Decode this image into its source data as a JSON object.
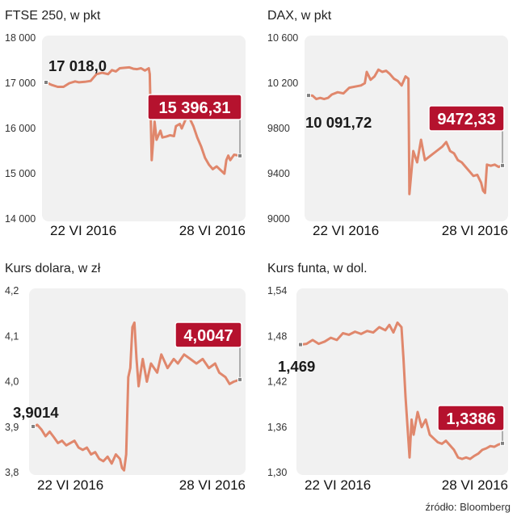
{
  "colors": {
    "line": "#e0876c",
    "panel": "#f1f1f1",
    "callout": "#b5122e",
    "marker": "#808080"
  },
  "source": "źródło: Bloomberg",
  "chart_data": [
    {
      "type": "line",
      "title": "FTSE 250, w pkt",
      "y_ticks": [
        "18 000",
        "17 000",
        "16 000",
        "15 000",
        "14 000"
      ],
      "ylim": [
        14000,
        18000
      ],
      "x_ticks": [
        "22 VI 2016",
        "28 VI 2016"
      ],
      "start_label": "17 018,0",
      "end_label": "15 396,31",
      "series": [
        {
          "values": [
            [
              0,
              17018
            ],
            [
              0.03,
              16960
            ],
            [
              0.06,
              16920
            ],
            [
              0.09,
              16920
            ],
            [
              0.12,
              17000
            ],
            [
              0.15,
              17040
            ],
            [
              0.17,
              17020
            ],
            [
              0.2,
              17030
            ],
            [
              0.23,
              17050
            ],
            [
              0.26,
              17200
            ],
            [
              0.29,
              17230
            ],
            [
              0.32,
              17200
            ],
            [
              0.34,
              17290
            ],
            [
              0.36,
              17260
            ],
            [
              0.38,
              17330
            ],
            [
              0.4,
              17340
            ],
            [
              0.43,
              17350
            ],
            [
              0.45,
              17320
            ],
            [
              0.47,
              17310
            ],
            [
              0.49,
              17330
            ],
            [
              0.51,
              17280
            ],
            [
              0.53,
              17330
            ],
            [
              0.535,
              17200
            ],
            [
              0.545,
              15300
            ],
            [
              0.56,
              16150
            ],
            [
              0.57,
              15750
            ],
            [
              0.59,
              15950
            ],
            [
              0.6,
              15800
            ],
            [
              0.62,
              15820
            ],
            [
              0.64,
              15850
            ],
            [
              0.66,
              15830
            ],
            [
              0.67,
              16050
            ],
            [
              0.69,
              16100
            ],
            [
              0.7,
              16000
            ],
            [
              0.72,
              16200
            ],
            [
              0.74,
              16230
            ],
            [
              0.76,
              16050
            ],
            [
              0.78,
              15800
            ],
            [
              0.8,
              15600
            ],
            [
              0.82,
              15350
            ],
            [
              0.84,
              15200
            ],
            [
              0.86,
              15100
            ],
            [
              0.88,
              15160
            ],
            [
              0.9,
              15080
            ],
            [
              0.92,
              15000
            ],
            [
              0.93,
              15300
            ],
            [
              0.94,
              15400
            ],
            [
              0.95,
              15300
            ],
            [
              0.97,
              15420
            ],
            [
              1,
              15396.31
            ]
          ]
        }
      ]
    },
    {
      "type": "line",
      "title": "DAX, w pkt",
      "y_ticks": [
        "10 600",
        "10 200",
        "9800",
        "9400",
        "9000"
      ],
      "ylim": [
        9000,
        10600
      ],
      "x_ticks": [
        "22 VI 2016",
        "28 VI 2016"
      ],
      "start_label": "10 091,72",
      "end_label": "9472,33",
      "series": [
        {
          "values": [
            [
              0,
              10092
            ],
            [
              0.02,
              10090
            ],
            [
              0.04,
              10060
            ],
            [
              0.06,
              10070
            ],
            [
              0.08,
              10060
            ],
            [
              0.1,
              10070
            ],
            [
              0.12,
              10100
            ],
            [
              0.15,
              10120
            ],
            [
              0.18,
              10110
            ],
            [
              0.21,
              10160
            ],
            [
              0.24,
              10170
            ],
            [
              0.27,
              10180
            ],
            [
              0.29,
              10200
            ],
            [
              0.3,
              10300
            ],
            [
              0.32,
              10230
            ],
            [
              0.34,
              10260
            ],
            [
              0.36,
              10320
            ],
            [
              0.38,
              10300
            ],
            [
              0.4,
              10310
            ],
            [
              0.42,
              10280
            ],
            [
              0.44,
              10240
            ],
            [
              0.46,
              10220
            ],
            [
              0.48,
              10180
            ],
            [
              0.5,
              10260
            ],
            [
              0.515,
              10240
            ],
            [
              0.52,
              9220
            ],
            [
              0.54,
              9600
            ],
            [
              0.56,
              9500
            ],
            [
              0.58,
              9700
            ],
            [
              0.6,
              9520
            ],
            [
              0.63,
              9560
            ],
            [
              0.66,
              9600
            ],
            [
              0.69,
              9640
            ],
            [
              0.71,
              9680
            ],
            [
              0.73,
              9600
            ],
            [
              0.75,
              9580
            ],
            [
              0.77,
              9520
            ],
            [
              0.79,
              9500
            ],
            [
              0.81,
              9460
            ],
            [
              0.83,
              9420
            ],
            [
              0.85,
              9380
            ],
            [
              0.87,
              9390
            ],
            [
              0.89,
              9320
            ],
            [
              0.9,
              9250
            ],
            [
              0.91,
              9230
            ],
            [
              0.92,
              9480
            ],
            [
              0.94,
              9470
            ],
            [
              0.96,
              9480
            ],
            [
              0.98,
              9460
            ],
            [
              1,
              9472.33
            ]
          ]
        }
      ]
    },
    {
      "type": "line",
      "title": "Kurs dolara, w zł",
      "y_ticks": [
        "4,2",
        "4,1",
        "4,0",
        "3,9",
        "3,8"
      ],
      "ylim": [
        3.8,
        4.2
      ],
      "x_ticks": [
        "22 VI 2016",
        "28 VI 2016"
      ],
      "start_label": "3,9014",
      "end_label": "4,0047",
      "series": [
        {
          "values": [
            [
              0,
              3.9014
            ],
            [
              0.02,
              3.905
            ],
            [
              0.04,
              3.895
            ],
            [
              0.06,
              3.88
            ],
            [
              0.08,
              3.89
            ],
            [
              0.1,
              3.878
            ],
            [
              0.12,
              3.865
            ],
            [
              0.14,
              3.87
            ],
            [
              0.16,
              3.86
            ],
            [
              0.18,
              3.865
            ],
            [
              0.2,
              3.87
            ],
            [
              0.22,
              3.855
            ],
            [
              0.24,
              3.85
            ],
            [
              0.26,
              3.855
            ],
            [
              0.28,
              3.84
            ],
            [
              0.3,
              3.845
            ],
            [
              0.32,
              3.83
            ],
            [
              0.34,
              3.825
            ],
            [
              0.36,
              3.835
            ],
            [
              0.38,
              3.82
            ],
            [
              0.4,
              3.84
            ],
            [
              0.42,
              3.83
            ],
            [
              0.43,
              3.81
            ],
            [
              0.44,
              3.805
            ],
            [
              0.45,
              3.84
            ],
            [
              0.46,
              4.01
            ],
            [
              0.47,
              4.03
            ],
            [
              0.48,
              4.12
            ],
            [
              0.49,
              4.13
            ],
            [
              0.5,
              4.05
            ],
            [
              0.51,
              3.99
            ],
            [
              0.52,
              4.02
            ],
            [
              0.53,
              4.05
            ],
            [
              0.55,
              4.0
            ],
            [
              0.57,
              4.04
            ],
            [
              0.6,
              4.02
            ],
            [
              0.62,
              4.06
            ],
            [
              0.65,
              4.03
            ],
            [
              0.68,
              4.05
            ],
            [
              0.7,
              4.04
            ],
            [
              0.73,
              4.06
            ],
            [
              0.76,
              4.05
            ],
            [
              0.79,
              4.04
            ],
            [
              0.82,
              4.05
            ],
            [
              0.85,
              4.03
            ],
            [
              0.88,
              4.04
            ],
            [
              0.9,
              4.02
            ],
            [
              0.93,
              4.01
            ],
            [
              0.95,
              3.995
            ],
            [
              0.97,
              4.0
            ],
            [
              1,
              4.0047
            ]
          ]
        }
      ]
    },
    {
      "type": "line",
      "title": "Kurs funta, w dol.",
      "y_ticks": [
        "1,54",
        "1,48",
        "1,42",
        "1,36",
        "1,30"
      ],
      "ylim": [
        1.3,
        1.54
      ],
      "x_ticks": [
        "22 VI 2016",
        "28 VI 2016"
      ],
      "start_label": "1,469",
      "end_label": "1,3386",
      "series": [
        {
          "values": [
            [
              0,
              1.469
            ],
            [
              0.03,
              1.47
            ],
            [
              0.06,
              1.475
            ],
            [
              0.09,
              1.47
            ],
            [
              0.12,
              1.473
            ],
            [
              0.15,
              1.478
            ],
            [
              0.18,
              1.475
            ],
            [
              0.21,
              1.484
            ],
            [
              0.24,
              1.482
            ],
            [
              0.27,
              1.486
            ],
            [
              0.3,
              1.483
            ],
            [
              0.33,
              1.487
            ],
            [
              0.36,
              1.485
            ],
            [
              0.39,
              1.492
            ],
            [
              0.42,
              1.488
            ],
            [
              0.44,
              1.495
            ],
            [
              0.46,
              1.485
            ],
            [
              0.48,
              1.498
            ],
            [
              0.5,
              1.492
            ],
            [
              0.51,
              1.45
            ],
            [
              0.52,
              1.4
            ],
            [
              0.53,
              1.36
            ],
            [
              0.54,
              1.32
            ],
            [
              0.55,
              1.37
            ],
            [
              0.56,
              1.35
            ],
            [
              0.58,
              1.38
            ],
            [
              0.6,
              1.36
            ],
            [
              0.62,
              1.37
            ],
            [
              0.64,
              1.35
            ],
            [
              0.66,
              1.345
            ],
            [
              0.68,
              1.34
            ],
            [
              0.7,
              1.338
            ],
            [
              0.72,
              1.342
            ],
            [
              0.74,
              1.336
            ],
            [
              0.76,
              1.33
            ],
            [
              0.78,
              1.32
            ],
            [
              0.8,
              1.318
            ],
            [
              0.82,
              1.32
            ],
            [
              0.84,
              1.318
            ],
            [
              0.86,
              1.322
            ],
            [
              0.88,
              1.325
            ],
            [
              0.9,
              1.33
            ],
            [
              0.92,
              1.332
            ],
            [
              0.94,
              1.335
            ],
            [
              0.96,
              1.334
            ],
            [
              0.98,
              1.337
            ],
            [
              1,
              1.3386
            ]
          ]
        }
      ]
    }
  ]
}
